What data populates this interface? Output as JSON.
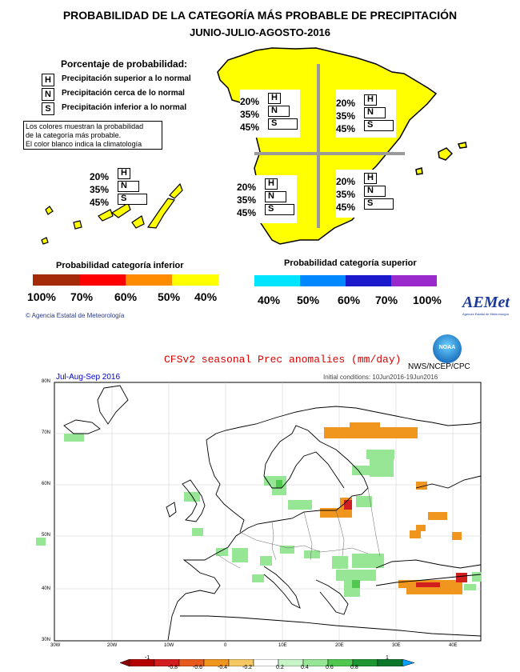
{
  "top": {
    "title": "PROBABILIDAD DE LA CATEGORÍA MÁS PROBABLE DE PRECIPITACIÓN",
    "subtitle": "JUNIO-JULIO-AGOSTO-2016",
    "legend_title": "Porcentaje de probabilidad:",
    "legend": [
      {
        "letter": "H",
        "label": "Precipitación superior a lo normal"
      },
      {
        "letter": "N",
        "label": "Precipitación cerca de lo normal"
      },
      {
        "letter": "S",
        "label": "Precipitación inferior a lo normal"
      }
    ],
    "note_lines": [
      "Los colores muestran la probabilidad",
      "de la categoría más probable.",
      "El color blanco indica la climatología"
    ],
    "regions": [
      {
        "id": "nw",
        "H": "20%",
        "N": "35%",
        "S": "45%"
      },
      {
        "id": "ne",
        "H": "20%",
        "N": "35%",
        "S": "45%"
      },
      {
        "id": "sw",
        "H": "20%",
        "N": "35%",
        "S": "45%"
      },
      {
        "id": "se",
        "H": "20%",
        "N": "35%",
        "S": "45%"
      },
      {
        "id": "canarias",
        "H": "20%",
        "N": "35%",
        "S": "45%"
      }
    ],
    "inferior_scale": {
      "title": "Probabilidad categoría inferior",
      "colors": [
        "#a52a0a",
        "#ff0000",
        "#ff8c00",
        "#ffff00"
      ],
      "labels": [
        "100%",
        "70%",
        "60%",
        "50%",
        "40%"
      ]
    },
    "superior_scale": {
      "title": "Probabilidad categoría superior",
      "colors": [
        "#00e5ff",
        "#0088ff",
        "#1a1acc",
        "#9a2acc"
      ],
      "labels": [
        "40%",
        "50%",
        "60%",
        "70%",
        "100%"
      ]
    },
    "copyright": "© Agencia Estatal de Meteorología",
    "logo_text": "AEMet",
    "logo_sub": "Agencia Estatal de Meteorología",
    "fill_color": "#ffff00"
  },
  "bottom": {
    "title": "CFSv2 seasonal Prec anomalies (mm/day)",
    "period": "Jul-Aug-Sep 2016",
    "agency": "NWS/NCEP/CPC",
    "noaa_logo": "NOAA",
    "initial_conditions": "Initial conditions: 10Jun2016-19Jun2016",
    "lat_labels": [
      "80N",
      "70N",
      "60N",
      "50N",
      "40N",
      "30N"
    ],
    "lon_labels": [
      "30W",
      "20W",
      "10W",
      "0",
      "10E",
      "20E",
      "30E",
      "40E"
    ],
    "colorbar": {
      "labels": [
        "-1",
        "-0.8",
        "-0.6",
        "-0.4",
        "-0.2",
        "0.2",
        "0.4",
        "0.6",
        "0.8",
        "1"
      ],
      "colors": [
        "#b40000",
        "#d21e1e",
        "#e65a1e",
        "#f0961e",
        "#f5c864",
        "#ffffff",
        "#c8f5c8",
        "#96e696",
        "#50c850",
        "#1e9632",
        "#0a7828"
      ]
    }
  }
}
